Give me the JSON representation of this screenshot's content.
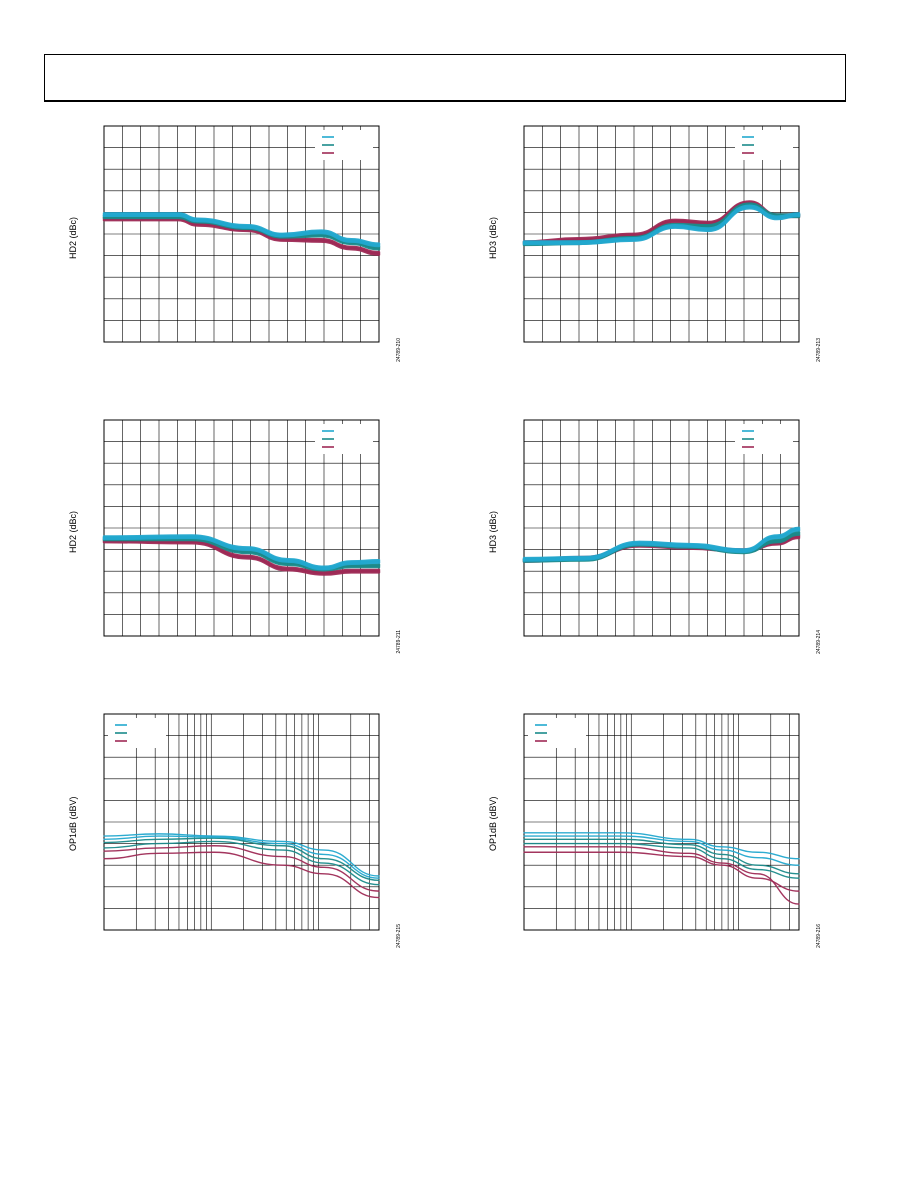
{
  "colors": {
    "light": "#22a8cf",
    "teal": "#1a8a8a",
    "crimson": "#9e2a55"
  },
  "chart_data": [
    {
      "type": "line",
      "grid": "linear",
      "ylabel": "HD2 (dBc)",
      "figure_code": "24789-210",
      "legend_location": "top-right",
      "x": [
        0,
        1
      ],
      "ylim": [
        0,
        10
      ],
      "y_dir": "up",
      "series": [
        {
          "color": "crimson",
          "values": [
            [
              0,
              5.7
            ],
            [
              0.27,
              5.7
            ],
            [
              0.34,
              5.45
            ],
            [
              0.52,
              5.2
            ],
            [
              0.65,
              4.75
            ],
            [
              0.79,
              4.7
            ],
            [
              0.9,
              4.35
            ],
            [
              1,
              4.1
            ]
          ]
        },
        {
          "color": "teal",
          "values": [
            [
              0,
              5.8
            ],
            [
              0.27,
              5.8
            ],
            [
              0.34,
              5.6
            ],
            [
              0.52,
              5.3
            ],
            [
              0.65,
              4.9
            ],
            [
              0.79,
              4.95
            ],
            [
              0.9,
              4.6
            ],
            [
              1,
              4.35
            ]
          ]
        },
        {
          "color": "light",
          "values": [
            [
              0,
              5.9
            ],
            [
              0.27,
              5.9
            ],
            [
              0.34,
              5.65
            ],
            [
              0.52,
              5.35
            ],
            [
              0.65,
              4.95
            ],
            [
              0.79,
              5.1
            ],
            [
              0.9,
              4.7
            ],
            [
              1,
              4.5
            ]
          ]
        }
      ]
    },
    {
      "type": "line",
      "grid": "linear",
      "ylabel": "HD3 (dBc)",
      "figure_code": "24789-213",
      "legend_location": "top-right",
      "x": [
        0,
        1
      ],
      "ylim": [
        0,
        10
      ],
      "y_dir": "up",
      "series": [
        {
          "color": "crimson",
          "values": [
            [
              0,
              4.6
            ],
            [
              0.2,
              4.75
            ],
            [
              0.4,
              4.95
            ],
            [
              0.55,
              5.6
            ],
            [
              0.67,
              5.5
            ],
            [
              0.82,
              6.45
            ],
            [
              0.92,
              5.85
            ],
            [
              1,
              5.85
            ]
          ]
        },
        {
          "color": "teal",
          "values": [
            [
              0,
              4.55
            ],
            [
              0.2,
              4.6
            ],
            [
              0.4,
              4.8
            ],
            [
              0.55,
              5.4
            ],
            [
              0.67,
              5.35
            ],
            [
              0.82,
              6.35
            ],
            [
              0.92,
              5.85
            ],
            [
              1,
              5.85
            ]
          ]
        },
        {
          "color": "light",
          "values": [
            [
              0,
              4.6
            ],
            [
              0.2,
              4.6
            ],
            [
              0.4,
              4.75
            ],
            [
              0.55,
              5.35
            ],
            [
              0.67,
              5.2
            ],
            [
              0.82,
              6.25
            ],
            [
              0.92,
              5.75
            ],
            [
              1,
              5.9
            ]
          ]
        }
      ]
    },
    {
      "type": "line",
      "grid": "linear",
      "ylabel": "HD2 (dBc)",
      "figure_code": "24789-211",
      "legend_location": "top-right",
      "x": [
        0,
        1
      ],
      "ylim": [
        0,
        10
      ],
      "y_dir": "up",
      "series": [
        {
          "color": "crimson",
          "values": [
            [
              0,
              4.4
            ],
            [
              0.32,
              4.35
            ],
            [
              0.52,
              3.65
            ],
            [
              0.67,
              3.1
            ],
            [
              0.8,
              2.9
            ],
            [
              0.9,
              3.0
            ],
            [
              1,
              3.0
            ]
          ]
        },
        {
          "color": "teal",
          "values": [
            [
              0,
              4.5
            ],
            [
              0.32,
              4.5
            ],
            [
              0.52,
              3.9
            ],
            [
              0.67,
              3.35
            ],
            [
              0.8,
              3.1
            ],
            [
              0.9,
              3.25
            ],
            [
              1,
              3.25
            ]
          ]
        },
        {
          "color": "light",
          "values": [
            [
              0,
              4.55
            ],
            [
              0.32,
              4.6
            ],
            [
              0.52,
              4.05
            ],
            [
              0.67,
              3.5
            ],
            [
              0.8,
              3.15
            ],
            [
              0.9,
              3.4
            ],
            [
              1,
              3.45
            ]
          ]
        }
      ]
    },
    {
      "type": "line",
      "grid": "linear",
      "ylabel": "HD3 (dBc)",
      "figure_code": "24789-214",
      "legend_location": "top-right",
      "x": [
        0,
        1
      ],
      "ylim": [
        0,
        10
      ],
      "y_dir": "up",
      "series": [
        {
          "color": "crimson",
          "values": [
            [
              0,
              3.5
            ],
            [
              0.22,
              3.6
            ],
            [
              0.42,
              4.2
            ],
            [
              0.6,
              4.1
            ],
            [
              0.8,
              3.95
            ],
            [
              0.92,
              4.3
            ],
            [
              1,
              4.6
            ]
          ]
        },
        {
          "color": "teal",
          "values": [
            [
              0,
              3.5
            ],
            [
              0.22,
              3.55
            ],
            [
              0.42,
              4.25
            ],
            [
              0.6,
              4.15
            ],
            [
              0.8,
              3.9
            ],
            [
              0.92,
              4.4
            ],
            [
              1,
              4.75
            ]
          ]
        },
        {
          "color": "light",
          "values": [
            [
              0,
              3.55
            ],
            [
              0.22,
              3.6
            ],
            [
              0.42,
              4.3
            ],
            [
              0.6,
              4.2
            ],
            [
              0.8,
              3.95
            ],
            [
              0.92,
              4.6
            ],
            [
              1,
              4.95
            ]
          ]
        }
      ]
    },
    {
      "type": "line",
      "grid": "log",
      "ylabel": "OP1dB (dBV)",
      "figure_code": "24789-215",
      "legend_location": "top-left",
      "x": [
        0,
        1
      ],
      "ylim": [
        0,
        10
      ],
      "y_dir": "up",
      "series": [
        {
          "color": "crimson",
          "values": [
            [
              0,
              3.3
            ],
            [
              0.2,
              3.55
            ],
            [
              0.4,
              3.6
            ],
            [
              0.65,
              3.0
            ],
            [
              0.8,
              2.6
            ],
            [
              1,
              1.5
            ]
          ]
        },
        {
          "color": "crimson",
          "values": [
            [
              0,
              3.65
            ],
            [
              0.2,
              3.8
            ],
            [
              0.4,
              3.9
            ],
            [
              0.65,
              3.4
            ],
            [
              0.8,
              2.9
            ],
            [
              1,
              1.8
            ]
          ]
        },
        {
          "color": "teal",
          "values": [
            [
              0,
              3.8
            ],
            [
              0.2,
              4.0
            ],
            [
              0.4,
              4.1
            ],
            [
              0.65,
              3.7
            ],
            [
              0.8,
              3.1
            ],
            [
              1,
              2.1
            ]
          ]
        },
        {
          "color": "teal",
          "values": [
            [
              0,
              4.05
            ],
            [
              0.2,
              4.2
            ],
            [
              0.4,
              4.25
            ],
            [
              0.65,
              3.9
            ],
            [
              0.8,
              3.3
            ],
            [
              1,
              2.3
            ]
          ]
        },
        {
          "color": "light",
          "values": [
            [
              0,
              4.2
            ],
            [
              0.2,
              4.35
            ],
            [
              0.4,
              4.3
            ],
            [
              0.65,
              4.0
            ],
            [
              0.8,
              3.5
            ],
            [
              1,
              2.4
            ]
          ]
        },
        {
          "color": "light",
          "values": [
            [
              0,
              4.35
            ],
            [
              0.2,
              4.45
            ],
            [
              0.4,
              4.35
            ],
            [
              0.65,
              4.1
            ],
            [
              0.8,
              3.7
            ],
            [
              1,
              2.5
            ]
          ]
        }
      ]
    },
    {
      "type": "line",
      "grid": "log",
      "ylabel": "OP1dB (dBV)",
      "figure_code": "24789-216",
      "legend_location": "top-left",
      "x": [
        0,
        1
      ],
      "ylim": [
        0,
        10
      ],
      "y_dir": "up",
      "series": [
        {
          "color": "crimson",
          "values": [
            [
              0,
              3.6
            ],
            [
              0.35,
              3.6
            ],
            [
              0.6,
              3.4
            ],
            [
              0.72,
              3.0
            ],
            [
              0.85,
              2.4
            ],
            [
              1,
              1.8
            ]
          ]
        },
        {
          "color": "crimson",
          "values": [
            [
              0,
              3.85
            ],
            [
              0.35,
              3.85
            ],
            [
              0.6,
              3.55
            ],
            [
              0.72,
              3.1
            ],
            [
              0.85,
              2.6
            ],
            [
              1,
              1.2
            ]
          ]
        },
        {
          "color": "teal",
          "values": [
            [
              0,
              4.0
            ],
            [
              0.35,
              4.0
            ],
            [
              0.6,
              3.8
            ],
            [
              0.72,
              3.3
            ],
            [
              0.85,
              2.8
            ],
            [
              1,
              2.4
            ]
          ]
        },
        {
          "color": "teal",
          "values": [
            [
              0,
              4.2
            ],
            [
              0.35,
              4.2
            ],
            [
              0.6,
              3.95
            ],
            [
              0.72,
              3.5
            ],
            [
              0.85,
              3.0
            ],
            [
              1,
              2.6
            ]
          ]
        },
        {
          "color": "light",
          "values": [
            [
              0,
              4.35
            ],
            [
              0.35,
              4.35
            ],
            [
              0.6,
              4.1
            ],
            [
              0.72,
              3.7
            ],
            [
              0.85,
              3.35
            ],
            [
              1,
              3.0
            ]
          ]
        },
        {
          "color": "light",
          "values": [
            [
              0,
              4.5
            ],
            [
              0.35,
              4.5
            ],
            [
              0.6,
              4.2
            ],
            [
              0.72,
              3.85
            ],
            [
              0.85,
              3.6
            ],
            [
              1,
              3.3
            ]
          ]
        }
      ]
    }
  ]
}
